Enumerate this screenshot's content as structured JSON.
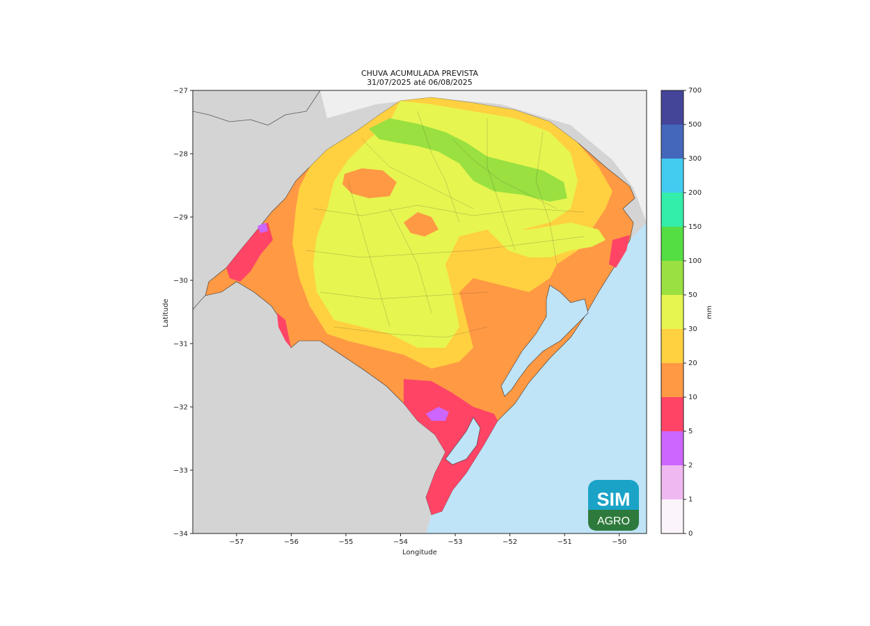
{
  "title_line1": "CHUVA ACUMULADA PREVISTA",
  "title_line2": "31/07/2025 até 06/08/2025",
  "axes": {
    "xlabel": "Longitude",
    "ylabel": "Latitude",
    "xticks": [
      "−57",
      "−56",
      "−55",
      "−54",
      "−53",
      "−52",
      "−51",
      "−50"
    ],
    "yticks": [
      "−27",
      "−28",
      "−29",
      "−30",
      "−31",
      "−32",
      "−33",
      "−34"
    ],
    "xlim": [
      -57.8,
      -49.5
    ],
    "ylim": [
      -34,
      -27
    ]
  },
  "colorbar": {
    "unit": "mm",
    "levels": [
      "0",
      "1",
      "2",
      "5",
      "10",
      "20",
      "30",
      "50",
      "100",
      "150",
      "200",
      "300",
      "500",
      "700"
    ],
    "colors": [
      "#fbf5fb",
      "#f0b8f0",
      "#cc66ff",
      "#ff4466",
      "#ff9944",
      "#ffd040",
      "#e6f550",
      "#99e040",
      "#55dd44",
      "#33eeaa",
      "#44ccf0",
      "#4466bb",
      "#444499"
    ]
  },
  "logo": {
    "top": "SIM",
    "bottom": "AGRO"
  },
  "colors": {
    "land_other": "#d4d4d4",
    "ocean": "#bfe3f7",
    "uruguay_bg": "#d9d9d9"
  }
}
